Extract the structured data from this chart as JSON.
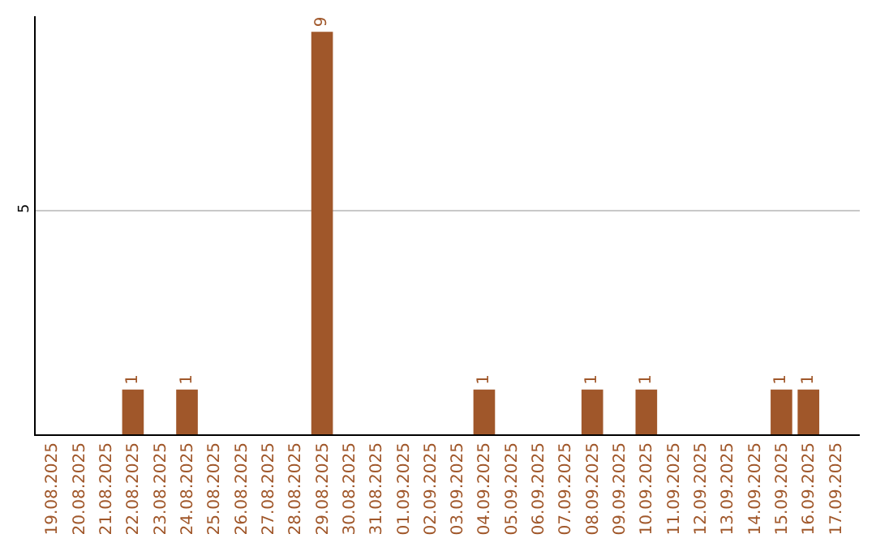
{
  "chart_data": {
    "type": "bar",
    "categories": [
      "19.08.2025",
      "20.08.2025",
      "21.08.2025",
      "22.08.2025",
      "23.08.2025",
      "24.08.2025",
      "25.08.2025",
      "26.08.2025",
      "27.08.2025",
      "28.08.2025",
      "29.08.2025",
      "30.08.2025",
      "31.08.2025",
      "01.09.2025",
      "02.09.2025",
      "03.09.2025",
      "04.09.2025",
      "05.09.2025",
      "06.09.2025",
      "07.09.2025",
      "08.09.2025",
      "09.09.2025",
      "10.09.2025",
      "11.09.2025",
      "12.09.2025",
      "13.09.2025",
      "14.09.2025",
      "15.09.2025",
      "16.09.2025",
      "17.09.2025"
    ],
    "values": [
      0,
      0,
      0,
      1,
      0,
      1,
      0,
      0,
      0,
      0,
      9,
      0,
      0,
      0,
      0,
      0,
      1,
      0,
      0,
      0,
      1,
      0,
      1,
      0,
      0,
      0,
      0,
      1,
      1,
      0
    ],
    "value_labels": [
      null,
      null,
      null,
      "1",
      null,
      "1",
      null,
      null,
      null,
      null,
      "9",
      null,
      null,
      null,
      null,
      null,
      "1",
      null,
      null,
      null,
      "1",
      null,
      "1",
      null,
      null,
      null,
      null,
      "1",
      "1",
      null
    ],
    "color": "#a0572a",
    "ylim": [
      0,
      9.35
    ],
    "yticks": [
      5
    ],
    "grid": "y",
    "legend": false
  }
}
